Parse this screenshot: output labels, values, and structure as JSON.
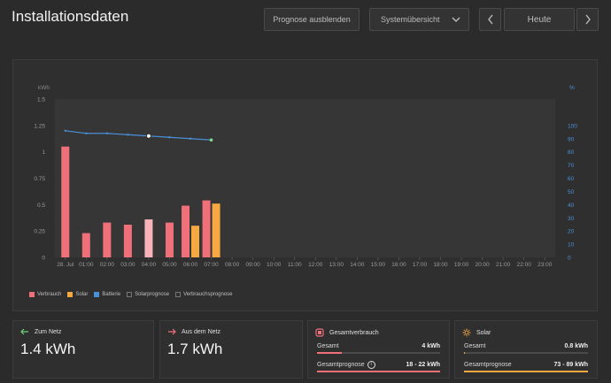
{
  "header": {
    "title": "Installationsdaten",
    "forecast_button": "Prognose ausblenden",
    "view_select": "Systemübersicht",
    "date_button": "Heute"
  },
  "chart_data": {
    "type": "bar",
    "y_left_label": "kWh",
    "y_right_label": "%",
    "y_left_ticks": [
      "1.5",
      "1.25",
      "1",
      "0.75",
      "0.5",
      "0.25",
      "0"
    ],
    "y_right_ticks": [
      "100",
      "90",
      "80",
      "70",
      "60",
      "50",
      "40",
      "30",
      "20",
      "10",
      "0"
    ],
    "ylim_left": [
      0,
      1.5
    ],
    "ylim_right": [
      0,
      120
    ],
    "x_tick_labels": [
      "28. Jul",
      "01:00",
      "02:00",
      "03:00",
      "04:00",
      "05:00",
      "06:00",
      "07:00",
      "08:00",
      "09:00",
      "10:00",
      "11:00",
      "12:00",
      "13:00",
      "14:00",
      "15:00",
      "16:00",
      "17:00",
      "18:00",
      "19:00",
      "20:00",
      "21:00",
      "22:00",
      "23:00"
    ],
    "series": [
      {
        "name": "Verbrauch",
        "color": "#f0707a",
        "values": [
          1.05,
          0.23,
          0.33,
          0.31,
          0.36,
          0.33,
          0.49,
          0.54,
          null,
          null,
          null,
          null,
          null,
          null,
          null,
          null,
          null,
          null,
          null,
          null,
          null,
          null,
          null,
          null
        ]
      },
      {
        "name": "Solar",
        "color": "#f5a940",
        "values": [
          null,
          null,
          null,
          null,
          null,
          null,
          0.3,
          0.51,
          null,
          null,
          null,
          null,
          null,
          null,
          null,
          null,
          null,
          null,
          null,
          null,
          null,
          null,
          null,
          null
        ]
      },
      {
        "name": "Batterie",
        "color": "#4a90d9",
        "type": "line",
        "values": [
          96,
          94,
          94,
          93,
          92,
          91,
          90,
          89,
          null,
          null,
          null,
          null,
          null,
          null,
          null,
          null,
          null,
          null,
          null,
          null,
          null,
          null,
          null,
          null
        ]
      }
    ],
    "highlight_bar_index": 4,
    "legend": [
      "Verbrauch",
      "Solar",
      "Batterie",
      "Solarprognose",
      "Verbrauchsprognose"
    ],
    "legend_colors": [
      "#f0707a",
      "#f5a940",
      "#4a90d9",
      "",
      ""
    ]
  },
  "cards": {
    "to_grid": {
      "label": "Zum Netz",
      "value": "1.4 kWh"
    },
    "from_grid": {
      "label": "Aus dem Netz",
      "value": "1.7 kWh"
    },
    "consumption": {
      "label": "Gesamtverbrauch",
      "row1_label": "Gesamt",
      "row1_value": "4 kWh",
      "row1_fill": 0.2,
      "row2_label": "Gesamtprognose",
      "row2_value": "18 - 22 kWh",
      "row2_fill": 1.0
    },
    "solar": {
      "label": "Solar",
      "row1_label": "Gesamt",
      "row1_value": "0.8 kWh",
      "row1_fill": 0.01,
      "row2_label": "Gesamtprognose",
      "row2_value": "73 - 89 kWh",
      "row2_fill": 1.0
    }
  }
}
